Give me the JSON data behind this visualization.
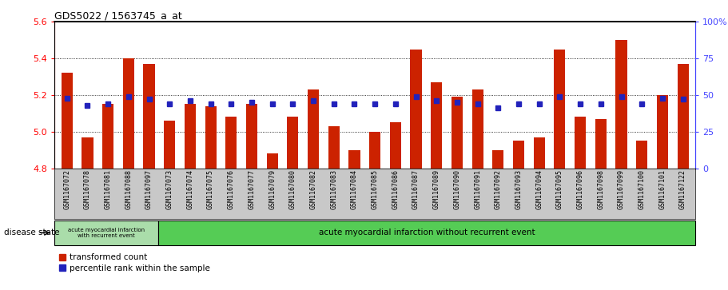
{
  "title": "GDS5022 / 1563745_a_at",
  "samples": [
    "GSM1167072",
    "GSM1167078",
    "GSM1167081",
    "GSM1167088",
    "GSM1167097",
    "GSM1167073",
    "GSM1167074",
    "GSM1167075",
    "GSM1167076",
    "GSM1167077",
    "GSM1167079",
    "GSM1167080",
    "GSM1167082",
    "GSM1167083",
    "GSM1167084",
    "GSM1167085",
    "GSM1167086",
    "GSM1167087",
    "GSM1167089",
    "GSM1167090",
    "GSM1167091",
    "GSM1167092",
    "GSM1167093",
    "GSM1167094",
    "GSM1167095",
    "GSM1167096",
    "GSM1167098",
    "GSM1167099",
    "GSM1167100",
    "GSM1167101",
    "GSM1167122"
  ],
  "bar_values": [
    5.32,
    4.97,
    5.15,
    5.4,
    5.37,
    5.06,
    5.15,
    5.14,
    5.08,
    5.15,
    4.88,
    5.08,
    5.23,
    5.03,
    4.9,
    5.0,
    5.05,
    5.45,
    5.27,
    5.19,
    5.23,
    4.9,
    4.95,
    4.97,
    5.45,
    5.08,
    5.07,
    5.5,
    4.95,
    5.2,
    5.37
  ],
  "percentile_values": [
    48,
    43,
    44,
    49,
    47,
    44,
    46,
    44,
    44,
    45,
    44,
    44,
    46,
    44,
    44,
    44,
    44,
    49,
    46,
    45,
    44,
    41,
    44,
    44,
    49,
    44,
    44,
    49,
    44,
    48,
    47
  ],
  "group1_count": 5,
  "group1_label": "acute myocardial infarction\nwith recurrent event",
  "group2_label": "acute myocardial infarction without recurrent event",
  "disease_state_label": "disease state",
  "ylim_left": [
    4.8,
    5.6
  ],
  "ylim_right": [
    0,
    100
  ],
  "yticks_left": [
    4.8,
    5.0,
    5.2,
    5.4,
    5.6
  ],
  "yticks_right": [
    0,
    25,
    50,
    75,
    100
  ],
  "ytick_labels_right": [
    "0",
    "25",
    "50",
    "75",
    "100%"
  ],
  "bar_color": "#CC2200",
  "dot_color": "#2222BB",
  "bg_color": "#C8C8C8",
  "group1_bg": "#AADDAA",
  "group2_bg": "#55CC55",
  "legend_red_label": "transformed count",
  "legend_blue_label": "percentile rank within the sample"
}
